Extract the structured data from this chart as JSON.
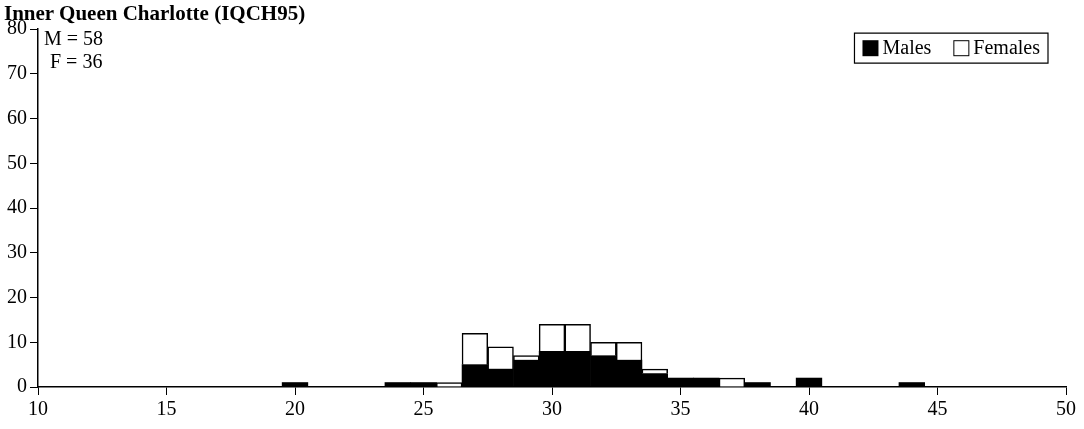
{
  "chart_data": {
    "type": "bar",
    "title": "Inner Queen Charlotte (IQCH95)",
    "x": [
      20,
      24,
      25,
      26,
      27,
      28,
      29,
      30,
      31,
      32,
      33,
      34,
      35,
      36,
      37,
      38,
      40,
      44
    ],
    "series": [
      {
        "name": "Males",
        "color": "#000000",
        "values": [
          1,
          1,
          1,
          null,
          5,
          4,
          6,
          8,
          8,
          7,
          6,
          3,
          2,
          2,
          null,
          1,
          2,
          1
        ]
      },
      {
        "name": "Females",
        "color": "#ffffff",
        "values": [
          null,
          null,
          null,
          1,
          7,
          5,
          1,
          6,
          6,
          3,
          4,
          1,
          null,
          null,
          2,
          null,
          null,
          null
        ]
      }
    ],
    "stacked": true,
    "xlim": [
      10,
      50
    ],
    "xticks": [
      10,
      15,
      20,
      25,
      30,
      35,
      40,
      45,
      50
    ],
    "ylim": [
      0,
      80
    ],
    "yticks": [
      0,
      10,
      20,
      30,
      40,
      50,
      60,
      70,
      80
    ],
    "grid": false,
    "legend": "top right",
    "annotations": [
      "M = 58",
      "F = 36"
    ]
  }
}
